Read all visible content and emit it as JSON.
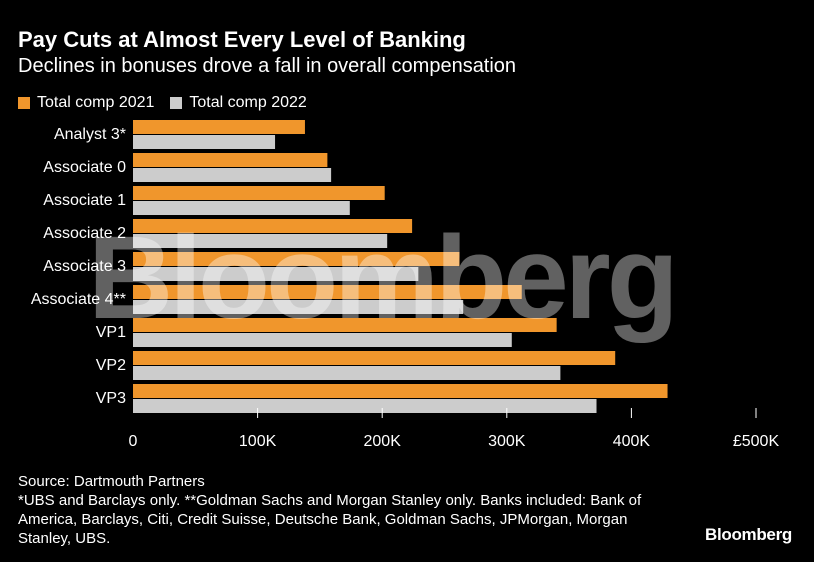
{
  "header": {
    "title": "Pay Cuts at Almost Every Level of Banking",
    "subtitle": "Declines in bonuses drove a fall in overall compensation"
  },
  "legend": [
    {
      "label": "Total comp 2021",
      "color": "#f0962c"
    },
    {
      "label": "Total comp 2022",
      "color": "#cccccc"
    }
  ],
  "chart_data": {
    "type": "bar",
    "orientation": "horizontal",
    "title": "Pay Cuts at Almost Every Level of Banking",
    "categories": [
      "Analyst 3*",
      "Associate 0",
      "Associate 1",
      "Associate 2",
      "Associate 3",
      "Associate 4**",
      "VP1",
      "VP2",
      "VP3"
    ],
    "series": [
      {
        "name": "Total comp 2021",
        "color": "#f0962c",
        "values": [
          138000,
          156000,
          202000,
          224000,
          262000,
          312000,
          340000,
          387000,
          429000
        ]
      },
      {
        "name": "Total comp 2022",
        "color": "#cccccc",
        "values": [
          114000,
          159000,
          174000,
          204000,
          229000,
          265000,
          304000,
          343000,
          372000
        ]
      }
    ],
    "xlim": [
      0,
      500000
    ],
    "xticks": [
      0,
      100000,
      200000,
      300000,
      400000,
      500000
    ],
    "xtick_labels": [
      "0",
      "100K",
      "200K",
      "300K",
      "400K",
      "£500K"
    ],
    "xlabel": "",
    "ylabel": "",
    "grid": false,
    "legend_position": "top-left"
  },
  "footer": {
    "source": "Source: Dartmouth Partners",
    "notes": "*UBS and Barclays only. **Goldman Sachs and Morgan Stanley only. Banks included: Bank of America, Barclays, Citi, Credit Suisse, Deutsche Bank, Goldman Sachs, JPMorgan, Morgan Stanley, UBS."
  },
  "brand": "Bloomberg",
  "watermark": "Bloomberg"
}
